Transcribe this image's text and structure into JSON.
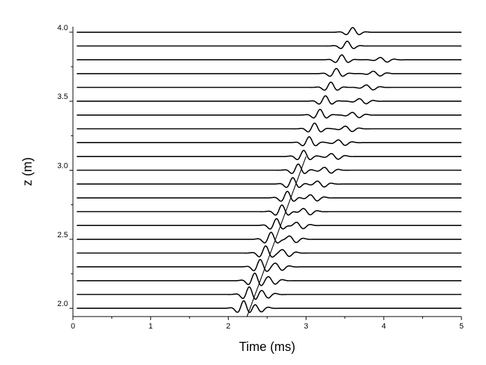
{
  "chart_data": {
    "type": "line",
    "title": "",
    "xlabel": "Time (ms)",
    "ylabel": "z (m)",
    "xlim": [
      0,
      5
    ],
    "ylim": [
      1.94,
      4.04
    ],
    "x_ticks": [
      0,
      1,
      2,
      3,
      4,
      5
    ],
    "x_tick_labels": [
      "0",
      "1",
      "2",
      "3",
      "4",
      "5"
    ],
    "y_tick_labels": [
      {
        "value": 2.0,
        "label": "2.0"
      },
      {
        "value": 2.5,
        "label": "2.5"
      },
      {
        "value": 3.0,
        "label": "3.0"
      },
      {
        "value": 3.5,
        "label": "3.5"
      },
      {
        "value": 4.0,
        "label": "4.0"
      }
    ],
    "trace_depths_m": [
      2.0,
      2.1,
      2.2,
      2.3,
      2.4,
      2.5,
      2.6,
      2.7,
      2.8,
      2.9,
      3.0,
      3.1,
      3.2,
      3.3,
      3.4,
      3.5,
      3.6,
      3.7,
      3.8,
      3.9,
      4.0
    ],
    "pulse_center_times_ms": [
      2.2,
      2.27,
      2.34,
      2.41,
      2.48,
      2.55,
      2.62,
      2.69,
      2.76,
      2.83,
      2.9,
      2.97,
      3.04,
      3.11,
      3.18,
      3.25,
      3.32,
      3.39,
      3.46,
      3.53,
      3.6
    ],
    "second_arrival_times_ms": [
      2.38,
      2.47,
      2.56,
      2.65,
      2.74,
      2.83,
      2.92,
      3.01,
      3.1,
      3.19,
      3.28,
      3.37,
      3.46,
      3.55,
      3.64,
      3.73,
      3.82,
      3.91,
      4.0
    ],
    "moveout_line": {
      "start": [
        2.24,
        1.94
      ],
      "end": [
        3.0,
        3.1
      ]
    },
    "grid": false,
    "legend": "none"
  }
}
